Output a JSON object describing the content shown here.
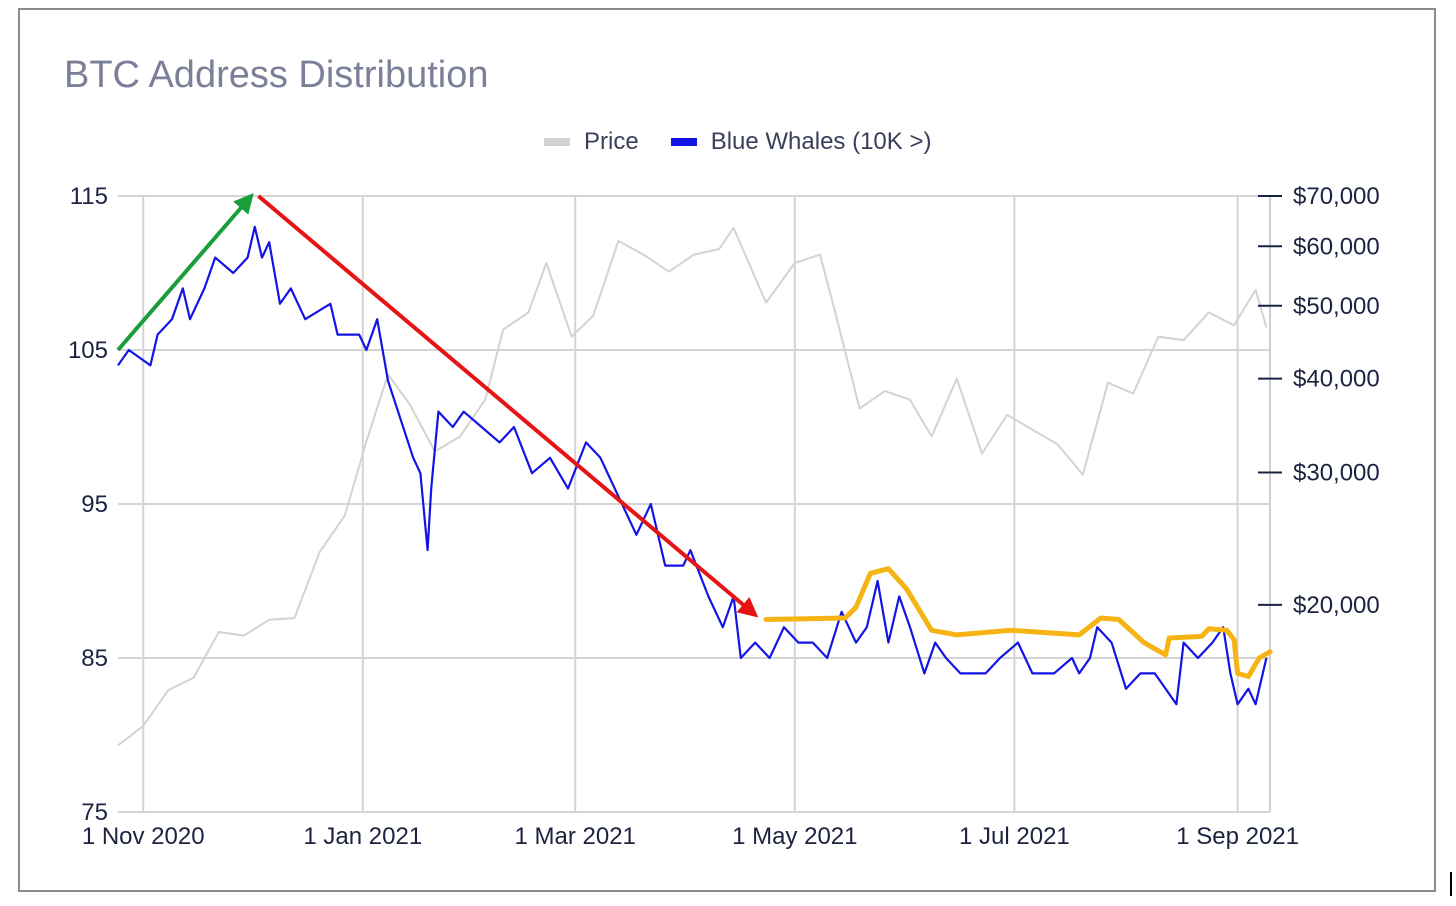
{
  "chart_data": {
    "type": "line",
    "title": "BTC Address Distribution",
    "legend_position": "top-center",
    "grid": true,
    "x_ticks": [
      "1 Nov 2020",
      "1 Jan 2021",
      "1 Mar 2021",
      "1 May 2021",
      "1 Jul 2021",
      "1 Sep 2021"
    ],
    "xlim": [
      "2020-10-25",
      "2021-09-10"
    ],
    "y_left": {
      "ticks": [
        "115",
        "105",
        "95",
        "85",
        "75"
      ],
      "ylim": [
        75,
        115
      ]
    },
    "y_right": {
      "scale": "log",
      "ticks": [
        "$70,000",
        "$60,000",
        "$50,000",
        "$40,000",
        "$30,000",
        "$20,000"
      ],
      "ylim": [
        10600,
        70000
      ]
    },
    "series": [
      {
        "name": "Price",
        "axis": "right",
        "color": "#d3d3d3",
        "points": [
          [
            "2020-10-25",
            13000
          ],
          [
            "2020-11-01",
            13800
          ],
          [
            "2020-11-08",
            15400
          ],
          [
            "2020-11-15",
            16000
          ],
          [
            "2020-11-22",
            18400
          ],
          [
            "2020-11-29",
            18200
          ],
          [
            "2020-12-06",
            19100
          ],
          [
            "2020-12-13",
            19200
          ],
          [
            "2020-12-20",
            23500
          ],
          [
            "2020-12-27",
            26300
          ],
          [
            "2021-01-02",
            33000
          ],
          [
            "2021-01-08",
            40500
          ],
          [
            "2021-01-14",
            37000
          ],
          [
            "2021-01-21",
            32000
          ],
          [
            "2021-01-28",
            33500
          ],
          [
            "2021-02-04",
            37500
          ],
          [
            "2021-02-09",
            46500
          ],
          [
            "2021-02-16",
            49000
          ],
          [
            "2021-02-21",
            57000
          ],
          [
            "2021-02-28",
            45500
          ],
          [
            "2021-03-06",
            48500
          ],
          [
            "2021-03-13",
            61000
          ],
          [
            "2021-03-20",
            58500
          ],
          [
            "2021-03-27",
            55500
          ],
          [
            "2021-04-03",
            58500
          ],
          [
            "2021-04-10",
            59500
          ],
          [
            "2021-04-14",
            63500
          ],
          [
            "2021-04-23",
            50500
          ],
          [
            "2021-05-01",
            57000
          ],
          [
            "2021-05-08",
            58500
          ],
          [
            "2021-05-12",
            49500
          ],
          [
            "2021-05-19",
            36500
          ],
          [
            "2021-05-26",
            38500
          ],
          [
            "2021-06-02",
            37500
          ],
          [
            "2021-06-08",
            33500
          ],
          [
            "2021-06-15",
            40000
          ],
          [
            "2021-06-22",
            31800
          ],
          [
            "2021-06-29",
            35800
          ],
          [
            "2021-07-06",
            34200
          ],
          [
            "2021-07-13",
            32700
          ],
          [
            "2021-07-20",
            29800
          ],
          [
            "2021-07-27",
            39500
          ],
          [
            "2021-08-03",
            38200
          ],
          [
            "2021-08-10",
            45500
          ],
          [
            "2021-08-17",
            45000
          ],
          [
            "2021-08-24",
            49000
          ],
          [
            "2021-08-31",
            47100
          ],
          [
            "2021-09-06",
            52500
          ],
          [
            "2021-09-09",
            46800
          ]
        ]
      },
      {
        "name": "Blue Whales (10K >)",
        "axis": "left",
        "color": "#1414e6",
        "points": [
          [
            "2020-10-25",
            104
          ],
          [
            "2020-10-28",
            105
          ],
          [
            "2020-11-03",
            104
          ],
          [
            "2020-11-05",
            106
          ],
          [
            "2020-11-09",
            107
          ],
          [
            "2020-11-12",
            109
          ],
          [
            "2020-11-14",
            107
          ],
          [
            "2020-11-18",
            109
          ],
          [
            "2020-11-21",
            111
          ],
          [
            "2020-11-26",
            110
          ],
          [
            "2020-11-30",
            111
          ],
          [
            "2020-12-02",
            113
          ],
          [
            "2020-12-04",
            111
          ],
          [
            "2020-12-06",
            112
          ],
          [
            "2020-12-09",
            108
          ],
          [
            "2020-12-12",
            109
          ],
          [
            "2020-12-16",
            107
          ],
          [
            "2020-12-23",
            108
          ],
          [
            "2020-12-25",
            106
          ],
          [
            "2020-12-31",
            106
          ],
          [
            "2021-01-02",
            105
          ],
          [
            "2021-01-05",
            107
          ],
          [
            "2021-01-08",
            103
          ],
          [
            "2021-01-15",
            98
          ],
          [
            "2021-01-17",
            97
          ],
          [
            "2021-01-19",
            92
          ],
          [
            "2021-01-20",
            96
          ],
          [
            "2021-01-22",
            101
          ],
          [
            "2021-01-26",
            100
          ],
          [
            "2021-01-29",
            101
          ],
          [
            "2021-02-03",
            100
          ],
          [
            "2021-02-08",
            99
          ],
          [
            "2021-02-12",
            100
          ],
          [
            "2021-02-17",
            97
          ],
          [
            "2021-02-22",
            98
          ],
          [
            "2021-02-27",
            96
          ],
          [
            "2021-03-04",
            99
          ],
          [
            "2021-03-08",
            98
          ],
          [
            "2021-03-14",
            95
          ],
          [
            "2021-03-18",
            93
          ],
          [
            "2021-03-22",
            95
          ],
          [
            "2021-03-26",
            91
          ],
          [
            "2021-03-31",
            91
          ],
          [
            "2021-04-02",
            92
          ],
          [
            "2021-04-07",
            89
          ],
          [
            "2021-04-11",
            87
          ],
          [
            "2021-04-14",
            89
          ],
          [
            "2021-04-16",
            85
          ],
          [
            "2021-04-20",
            86
          ],
          [
            "2021-04-24",
            85
          ],
          [
            "2021-04-28",
            87
          ],
          [
            "2021-05-02",
            86
          ],
          [
            "2021-05-06",
            86
          ],
          [
            "2021-05-10",
            85
          ],
          [
            "2021-05-14",
            88
          ],
          [
            "2021-05-18",
            86
          ],
          [
            "2021-05-21",
            87
          ],
          [
            "2021-05-24",
            90
          ],
          [
            "2021-05-27",
            86
          ],
          [
            "2021-05-30",
            89
          ],
          [
            "2021-06-02",
            87
          ],
          [
            "2021-06-06",
            84
          ],
          [
            "2021-06-09",
            86
          ],
          [
            "2021-06-12",
            85
          ],
          [
            "2021-06-16",
            84
          ],
          [
            "2021-06-23",
            84
          ],
          [
            "2021-06-27",
            85
          ],
          [
            "2021-07-02",
            86
          ],
          [
            "2021-07-06",
            84
          ],
          [
            "2021-07-12",
            84
          ],
          [
            "2021-07-17",
            85
          ],
          [
            "2021-07-19",
            84
          ],
          [
            "2021-07-22",
            85
          ],
          [
            "2021-07-24",
            87
          ],
          [
            "2021-07-28",
            86
          ],
          [
            "2021-08-01",
            83
          ],
          [
            "2021-08-05",
            84
          ],
          [
            "2021-08-09",
            84
          ],
          [
            "2021-08-12",
            83
          ],
          [
            "2021-08-15",
            82
          ],
          [
            "2021-08-17",
            86
          ],
          [
            "2021-08-21",
            85
          ],
          [
            "2021-08-25",
            86
          ],
          [
            "2021-08-28",
            87
          ],
          [
            "2021-08-30",
            84
          ],
          [
            "2021-09-01",
            82
          ],
          [
            "2021-09-04",
            83
          ],
          [
            "2021-09-06",
            82
          ],
          [
            "2021-09-09",
            85
          ]
        ]
      }
    ],
    "annotations": [
      {
        "type": "arrow",
        "color": "#1a9e3a",
        "from": [
          "2020-10-25",
          105
        ],
        "to": [
          "2020-12-01",
          115
        ]
      },
      {
        "type": "arrow",
        "color": "#e61414",
        "from": [
          "2020-12-03",
          115
        ],
        "to": [
          "2021-04-20",
          87.8
        ]
      },
      {
        "type": "freehand-line",
        "color": "#f5b414",
        "points": [
          [
            "2021-04-23",
            87.5
          ],
          [
            "2021-05-15",
            87.6
          ],
          [
            "2021-05-18",
            88.3
          ],
          [
            "2021-05-22",
            90.5
          ],
          [
            "2021-05-27",
            90.8
          ],
          [
            "2021-06-01",
            89.5
          ],
          [
            "2021-06-08",
            86.8
          ],
          [
            "2021-06-15",
            86.5
          ],
          [
            "2021-06-30",
            86.8
          ],
          [
            "2021-07-19",
            86.5
          ],
          [
            "2021-07-25",
            87.6
          ],
          [
            "2021-07-30",
            87.5
          ],
          [
            "2021-08-06",
            86
          ],
          [
            "2021-08-12",
            85.2
          ],
          [
            "2021-08-13",
            86.3
          ],
          [
            "2021-08-22",
            86.4
          ],
          [
            "2021-08-24",
            86.9
          ],
          [
            "2021-08-29",
            86.8
          ],
          [
            "2021-08-31",
            86.2
          ],
          [
            "2021-09-01",
            84
          ],
          [
            "2021-09-04",
            83.8
          ],
          [
            "2021-09-07",
            85
          ],
          [
            "2021-09-10",
            85.4
          ]
        ]
      }
    ]
  }
}
